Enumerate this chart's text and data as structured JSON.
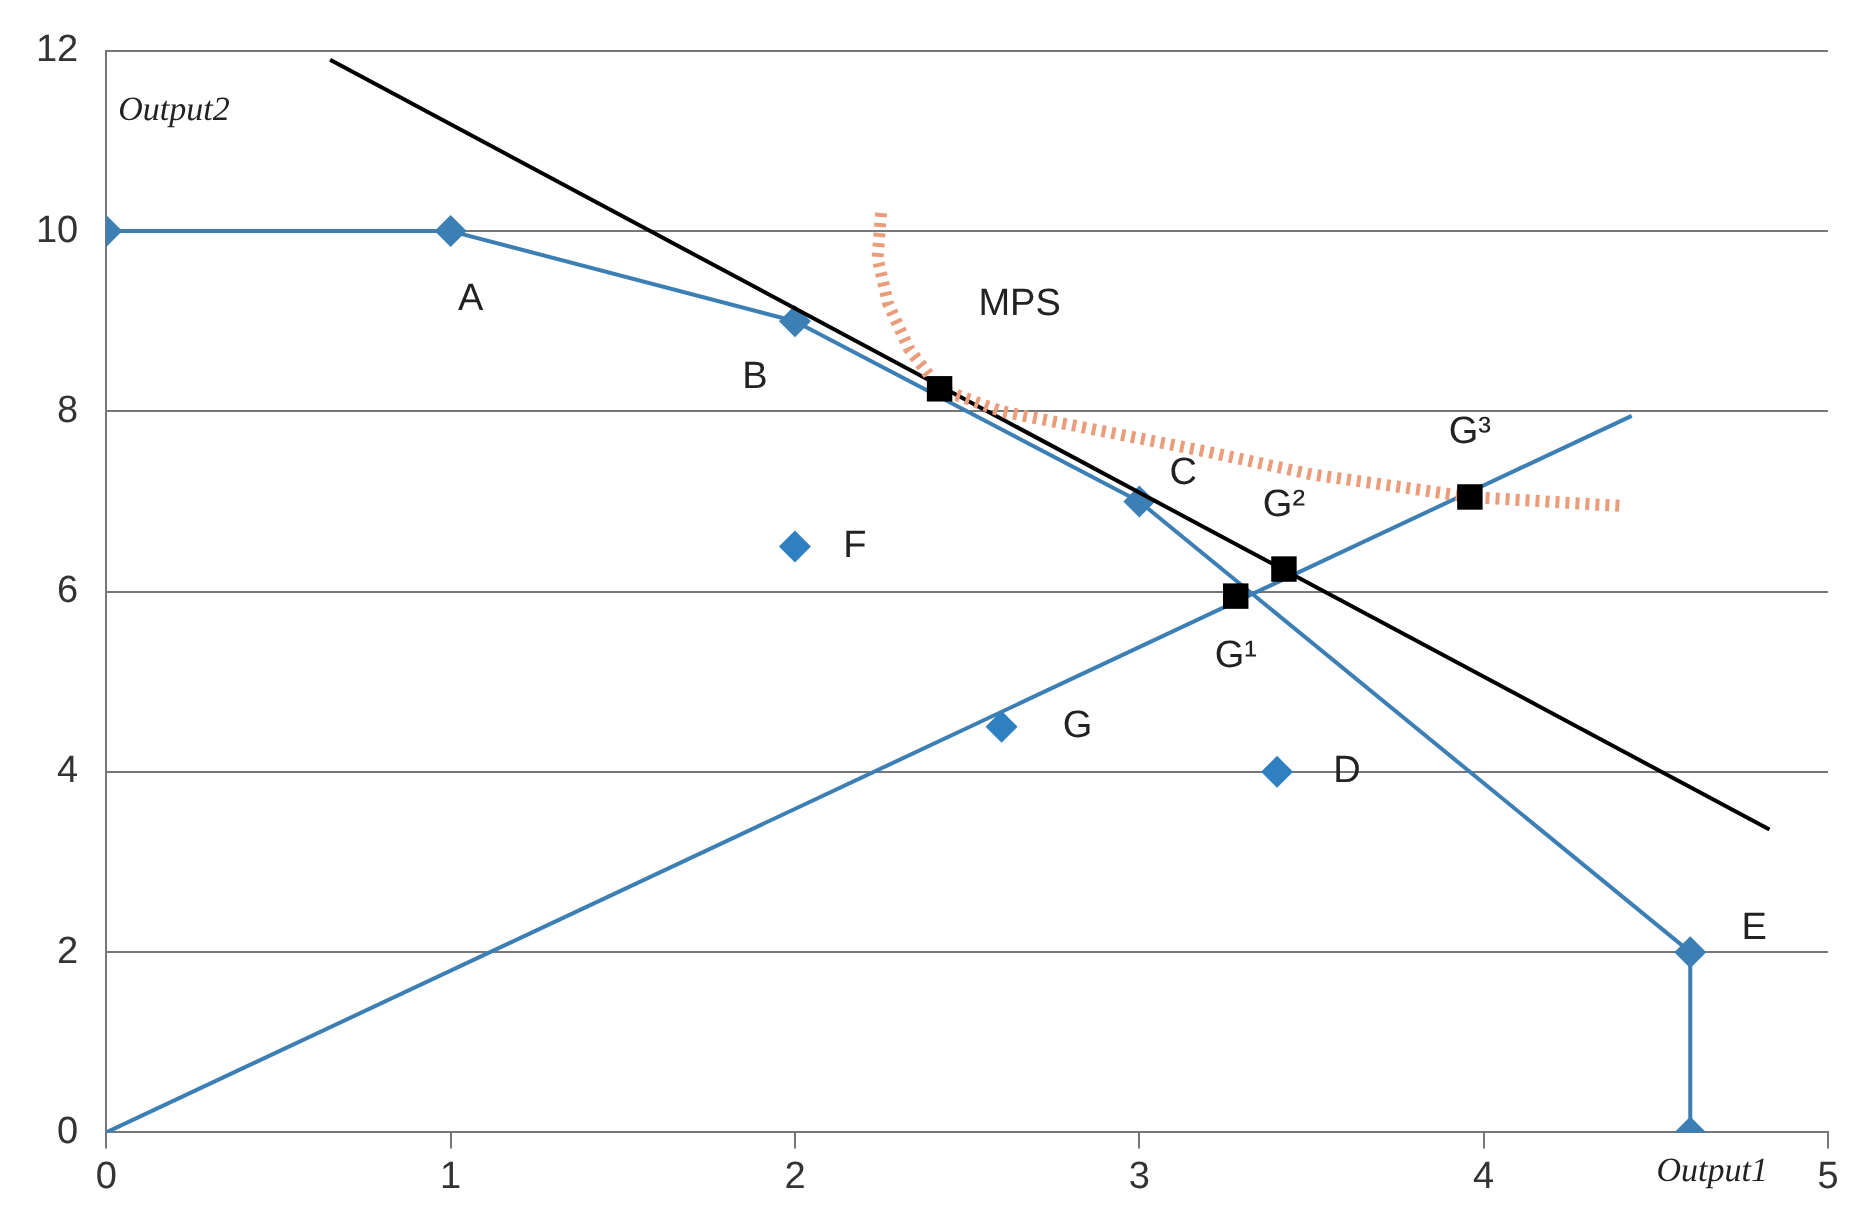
{
  "chart_data": {
    "type": "scatter",
    "xlabel": "Output1",
    "ylabel": "Output2",
    "xlim": [
      0,
      5
    ],
    "xticks": [
      0,
      1,
      2,
      3,
      4,
      5
    ],
    "ylim": [
      0,
      12
    ],
    "yticks": [
      0,
      2,
      4,
      6,
      8,
      10,
      12
    ],
    "grid": "y",
    "legend": false,
    "series": [
      {
        "type": "line",
        "color": "#3b7fb4",
        "marker": "diamond",
        "x": [
          0,
          1,
          2,
          3,
          4.6,
          4.6
        ],
        "values": [
          10,
          10,
          9,
          7,
          2,
          0
        ]
      },
      {
        "color": "#2f80c0",
        "marker": "diamond",
        "x": [
          2,
          3.4,
          2.6
        ],
        "values": [
          6.5,
          4,
          4.5
        ]
      },
      {
        "type": "line",
        "color": "#3b7fb4",
        "marker": "none",
        "x": [
          0,
          4.43
        ],
        "values": [
          0,
          7.95
        ]
      },
      {
        "type": "line",
        "color": "#000000",
        "marker": "none",
        "x": [
          0.65,
          4.83
        ],
        "values": [
          11.9,
          3.36
        ]
      },
      {
        "type": "line",
        "color": "#eb9c7a",
        "marker": "none",
        "line_style": "dotted",
        "x": [
          2.25,
          2.24,
          2.27,
          2.33,
          2.42,
          2.6,
          2.8,
          3.2,
          3.5,
          3.96,
          4.4
        ],
        "values": [
          10.2,
          9.7,
          9.2,
          8.7,
          8.25,
          8.0,
          7.85,
          7.55,
          7.3,
          7.05,
          6.95
        ]
      },
      {
        "color": "#000000",
        "marker": "square",
        "x": [
          2.42,
          3.28,
          3.42,
          3.96
        ],
        "values": [
          8.25,
          5.95,
          6.25,
          7.05
        ]
      }
    ],
    "annotations": [
      {
        "text": "A",
        "x": 1,
        "y": 10
      },
      {
        "text": "B",
        "x": 2,
        "y": 9
      },
      {
        "text": "MPS",
        "x": 2.42,
        "y": 8.25
      },
      {
        "text": "C",
        "x": 3,
        "y": 7
      },
      {
        "text": "F",
        "x": 2,
        "y": 6.5
      },
      {
        "text": "G",
        "x": 2.6,
        "y": 4.5
      },
      {
        "text": "D",
        "x": 3.4,
        "y": 4
      },
      {
        "text": "E",
        "x": 4.6,
        "y": 2
      },
      {
        "text": "G¹",
        "x": 3.28,
        "y": 5.95
      },
      {
        "text": "G²",
        "x": 3.42,
        "y": 6.25
      },
      {
        "text": "G³",
        "x": 3.96,
        "y": 7.05
      }
    ]
  }
}
